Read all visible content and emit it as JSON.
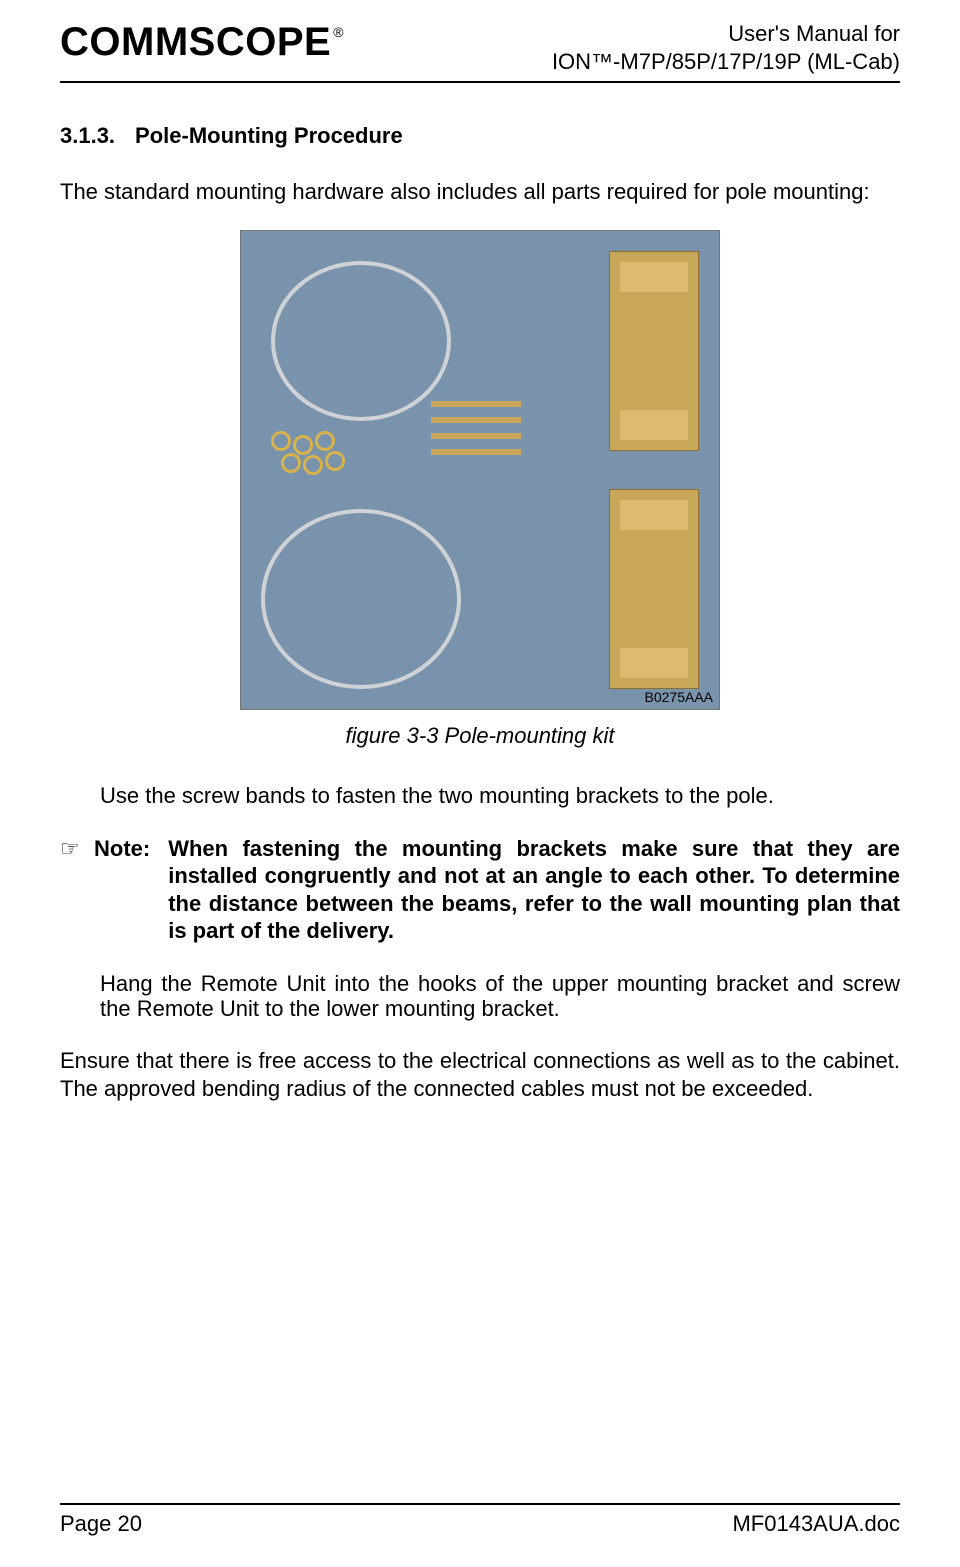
{
  "header": {
    "logo_text": "COMMSCOPE",
    "logo_reg": "®",
    "right_line1": "User's Manual for",
    "right_line2": "ION™-M7P/85P/17P/19P (ML-Cab)"
  },
  "section": {
    "number": "3.1.3.",
    "title": "Pole-Mounting Procedure"
  },
  "intro_paragraph": "The standard mounting hardware also includes all parts required for pole mounting:",
  "figure": {
    "image_tag": "B0275AAA",
    "caption": "figure 3-3 Pole-mounting kit",
    "bg_color": "#7a93ac",
    "metal_color": "#c9a75a",
    "ring_color": "#cfd3d6"
  },
  "step1": "Use the screw bands to fasten the two mounting brackets to the pole.",
  "note": {
    "hand": "☞",
    "label": "Note:",
    "body": "When fastening the mounting brackets make sure that they are installed congruently and not at an angle to each other. To determine the distance between the beams, refer to the wall mounting plan that is part of the delivery."
  },
  "step2": "Hang the Remote Unit into the hooks of the upper mounting bracket and screw the Remote Unit to the lower mounting bracket.",
  "closing_paragraph": "Ensure that there is free access to the electrical connections as well as to the cabinet. The approved bending radius of the connected cables must not be exceeded.",
  "footer": {
    "left": "Page 20",
    "right": "MF0143AUA.doc"
  }
}
